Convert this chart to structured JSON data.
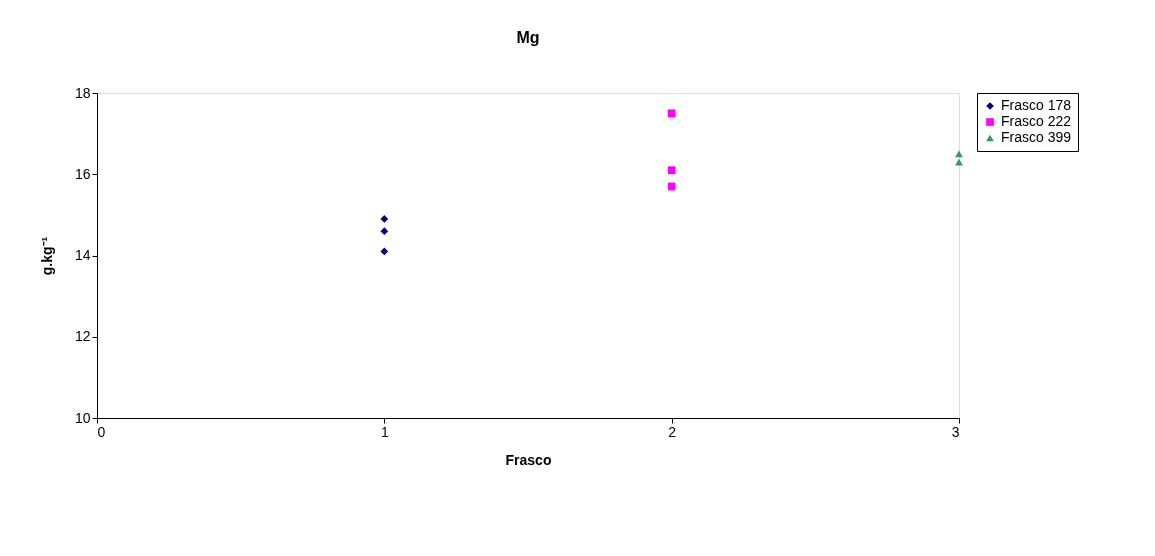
{
  "chart_data": {
    "type": "scatter",
    "title": "Mg",
    "xlabel": "Frasco",
    "ylabel": "g.kg⁻¹",
    "xlim": [
      0,
      3
    ],
    "xticks": [
      0,
      1,
      2,
      3
    ],
    "ylim": [
      10,
      18
    ],
    "yticks": [
      10,
      12,
      14,
      16,
      18
    ],
    "grid": false,
    "legend": "right",
    "series": [
      {
        "name": "Frasco 178",
        "color": "#000080",
        "marker": "diamond",
        "x": [
          1,
          1,
          1
        ],
        "values": [
          14.9,
          14.6,
          14.1
        ]
      },
      {
        "name": "Frasco 222",
        "color": "#ff00ff",
        "marker": "square",
        "x": [
          2,
          2,
          2
        ],
        "values": [
          17.5,
          16.1,
          15.7
        ]
      },
      {
        "name": "Frasco 399",
        "color": "#339966",
        "marker": "triangle",
        "x": [
          3,
          3
        ],
        "values": [
          16.5,
          16.3
        ]
      }
    ]
  }
}
